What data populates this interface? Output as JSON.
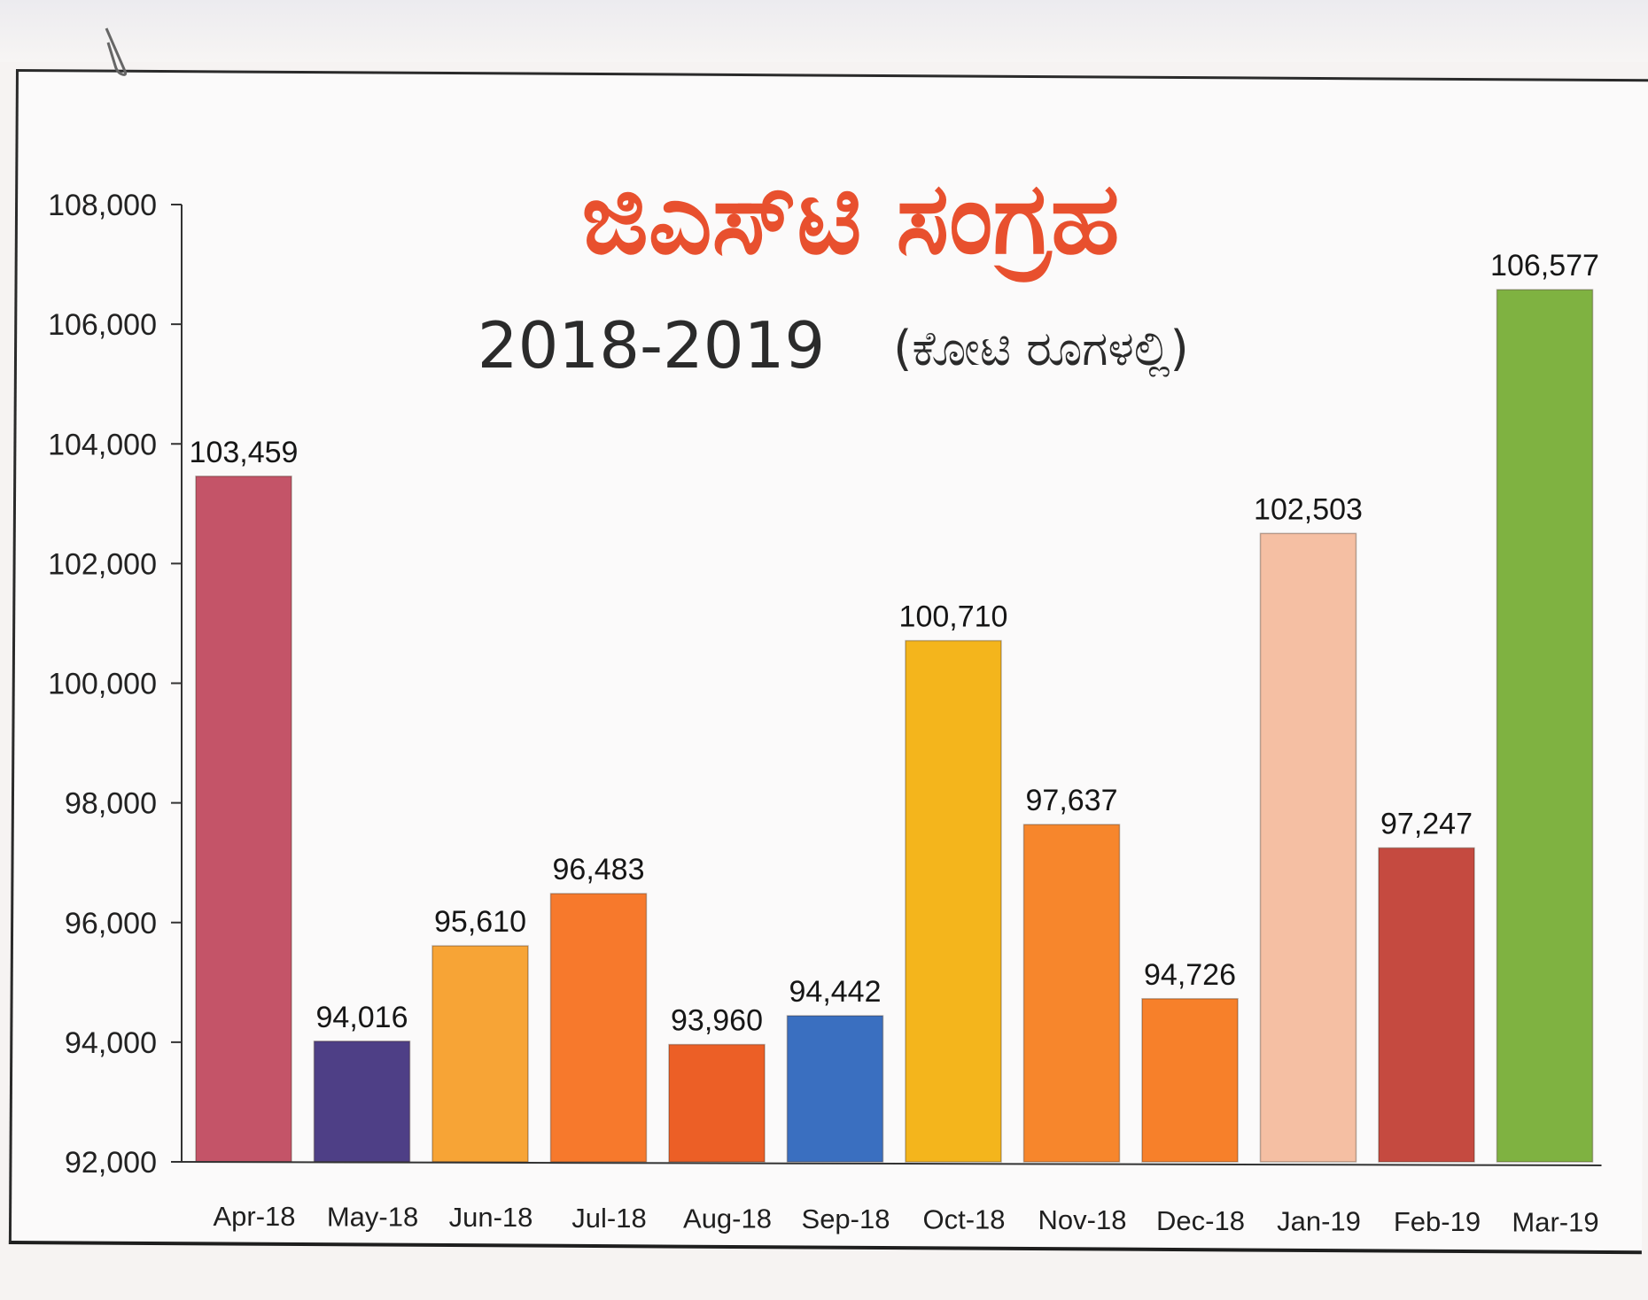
{
  "chart_data": {
    "type": "bar",
    "title": "ಜಿಎಸ್‌ಟಿ ಸಂಗ್ರಹ",
    "subtitle_year": "2018-2019",
    "subtitle_unit": "(ಕೋಟಿ ರೂಗಳಲ್ಲಿ)",
    "xlabel": "",
    "ylabel": "",
    "ylim": [
      92000,
      108000
    ],
    "yticks": [
      92000,
      94000,
      96000,
      98000,
      100000,
      102000,
      104000,
      106000,
      108000
    ],
    "ytick_labels": [
      "92,000",
      "94,000",
      "96,000",
      "98,000",
      "100,000",
      "102,000",
      "104,000",
      "106,000",
      "108,000"
    ],
    "grid": false,
    "legend": "none",
    "categories": [
      "Apr-18",
      "May-18",
      "Jun-18",
      "Jul-18",
      "Aug-18",
      "Sep-18",
      "Oct-18",
      "Nov-18",
      "Dec-18",
      "Jan-19",
      "Feb-19",
      "Mar-19"
    ],
    "values": [
      103459,
      94016,
      95610,
      96483,
      93960,
      94442,
      100710,
      97637,
      94726,
      102503,
      97247,
      106577
    ],
    "value_labels": [
      "103,459",
      "94,016",
      "95,610",
      "96,483",
      "93,960",
      "94,442",
      "100,710",
      "97,637",
      "94,726",
      "102,503",
      "97,247",
      "106,577"
    ],
    "bar_colors": [
      "#c45468",
      "#4e3f86",
      "#f7a436",
      "#f7792c",
      "#ec5f26",
      "#3a6fc0",
      "#f4b51c",
      "#f7862c",
      "#f7802a",
      "#f5bfa3",
      "#c54a40",
      "#7fb241"
    ]
  }
}
